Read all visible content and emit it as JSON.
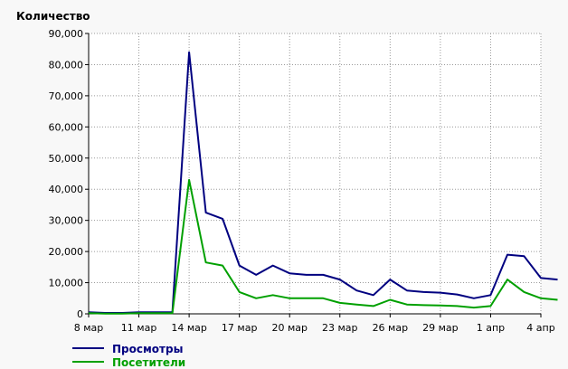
{
  "chart_data": {
    "type": "line",
    "title": "",
    "ylabel": "Количество",
    "xlabel": "",
    "ylim": [
      0,
      90000
    ],
    "y_ticks": [
      "0",
      "10,000",
      "20,000",
      "30,000",
      "40,000",
      "50,000",
      "60,000",
      "70,000",
      "80,000",
      "90,000"
    ],
    "x_tick_labels": [
      {
        "day": 0,
        "label": "8 мар"
      },
      {
        "day": 3,
        "label": "11 мар"
      },
      {
        "day": 6,
        "label": "14 мар"
      },
      {
        "day": 9,
        "label": "17 мар"
      },
      {
        "day": 12,
        "label": "20 мар"
      },
      {
        "day": 15,
        "label": "23 мар"
      },
      {
        "day": 18,
        "label": "26 мар"
      },
      {
        "day": 21,
        "label": "29 мар"
      },
      {
        "day": 24,
        "label": "1 апр"
      },
      {
        "day": 27,
        "label": "4 апр"
      }
    ],
    "x_range_days": [
      0,
      27
    ],
    "grid": true,
    "legend_position": "bottom-left",
    "series": [
      {
        "name": "Просмотры",
        "color": "#000080",
        "values": [
          500,
          300,
          300,
          500,
          500,
          500,
          84000,
          32500,
          30500,
          15500,
          12500,
          15500,
          13000,
          12500,
          12500,
          11000,
          7500,
          6000,
          11000,
          7500,
          7000,
          6800,
          6200,
          5000,
          6000,
          19000,
          18500,
          11500,
          11000
        ]
      },
      {
        "name": "Посетители",
        "color": "#00a000",
        "values": [
          200,
          100,
          100,
          200,
          200,
          200,
          43000,
          16500,
          15500,
          7000,
          5000,
          6000,
          5000,
          5000,
          5000,
          3500,
          3000,
          2500,
          4500,
          3000,
          2800,
          2700,
          2500,
          2000,
          2500,
          11000,
          7000,
          5000,
          4500
        ]
      }
    ]
  }
}
